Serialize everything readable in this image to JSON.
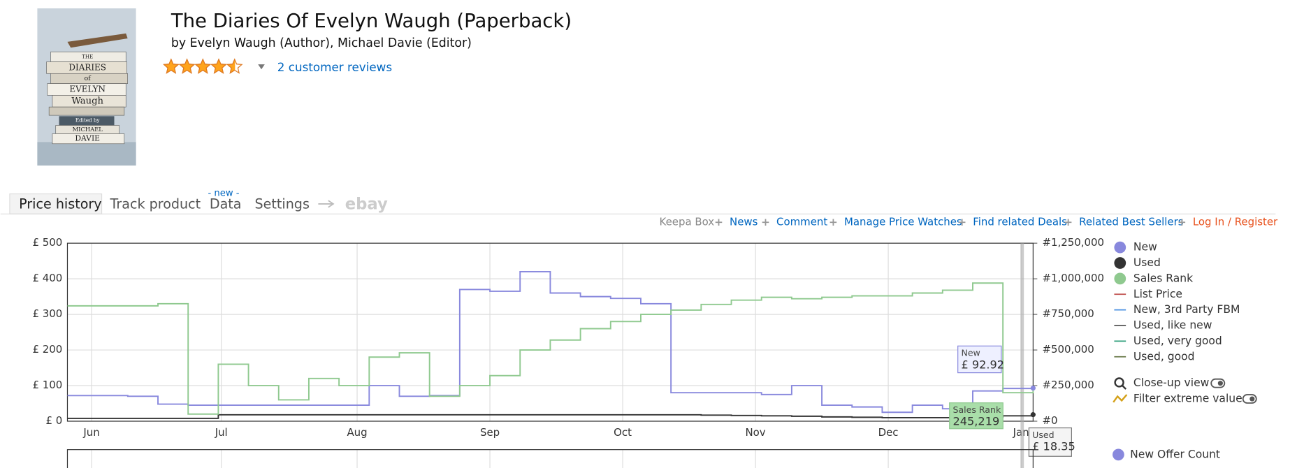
{
  "cover": {
    "lines": [
      "THE",
      "DIARIES",
      "of",
      "EVELYN",
      "Waugh",
      "Edited by",
      "MICHAEL",
      "DAVIE"
    ]
  },
  "header": {
    "title": "The Diaries Of Evelyn Waugh (Paperback)",
    "byline": "by Evelyn Waugh (Author), Michael Davie (Editor)",
    "rating": 4.5,
    "reviews": "2 customer reviews"
  },
  "tabs": {
    "items": [
      "Price history",
      "Track product",
      "Data",
      "Settings",
      "ebay"
    ],
    "new_badge": "- new -"
  },
  "links": [
    "Keepa Box",
    "News",
    "Comment",
    "Manage Price Watches",
    "Find related Deals",
    "Related Best Sellers",
    "Log In / Register"
  ],
  "chart_data": {
    "type": "line",
    "xlim": [
      0,
      32
    ],
    "xticks": [
      {
        "value": 0.8,
        "label": "Jun"
      },
      {
        "value": 5.1,
        "label": "Jul"
      },
      {
        "value": 9.6,
        "label": "Aug"
      },
      {
        "value": 14.0,
        "label": "Sep"
      },
      {
        "value": 18.4,
        "label": "Oct"
      },
      {
        "value": 22.8,
        "label": "Nov"
      },
      {
        "value": 27.2,
        "label": "Dec"
      },
      {
        "value": 31.6,
        "label": "Jan"
      }
    ],
    "ylim": [
      0,
      500
    ],
    "yticks": [
      {
        "value": 0,
        "label": "£ 0"
      },
      {
        "value": 100,
        "label": "£ 100"
      },
      {
        "value": 200,
        "label": "£ 200"
      },
      {
        "value": 300,
        "label": "£ 300"
      },
      {
        "value": 400,
        "label": "£ 400"
      },
      {
        "value": 500,
        "label": "£ 500"
      }
    ],
    "y2lim": [
      0,
      1250000
    ],
    "y2ticks": [
      {
        "value": 0,
        "label": "#0"
      },
      {
        "value": 250000,
        "label": "#250,000"
      },
      {
        "value": 500000,
        "label": "#500,000"
      },
      {
        "value": 750000,
        "label": "#750,000"
      },
      {
        "value": 1000000,
        "label": "#1,000,000"
      },
      {
        "value": 1250000,
        "label": "#1,250,000"
      }
    ],
    "grid": true,
    "series": [
      {
        "name": "New",
        "color": "#8888dd",
        "values": [
          72,
          72,
          70,
          48,
          45,
          45,
          45,
          45,
          45,
          45,
          100,
          70,
          72,
          370,
          365,
          420,
          360,
          350,
          345,
          330,
          80,
          80,
          80,
          75,
          100,
          45,
          40,
          25,
          45,
          35,
          85,
          92,
          92.92
        ]
      },
      {
        "name": "Used",
        "color": "#333333",
        "values": [
          8,
          8,
          8,
          8,
          8,
          18,
          18,
          18,
          18,
          18,
          18,
          18,
          18,
          18,
          18,
          18,
          18,
          18,
          18,
          18,
          18,
          17,
          16,
          15,
          14,
          12,
          11,
          10,
          10,
          10,
          12,
          15,
          18.35
        ]
      },
      {
        "name": "Sales Rank",
        "color": "#8fc98f",
        "axis": "y2",
        "values": [
          810000,
          810000,
          810000,
          825000,
          50000,
          400000,
          250000,
          150000,
          300000,
          250000,
          450000,
          480000,
          175000,
          250000,
          320000,
          500000,
          570000,
          650000,
          700000,
          750000,
          780000,
          820000,
          850000,
          870000,
          860000,
          870000,
          880000,
          880000,
          900000,
          920000,
          970000,
          200000,
          245219
        ]
      }
    ],
    "legend_extra": [
      {
        "name": "List Price",
        "color": "#c0504d"
      },
      {
        "name": "New, 3rd Party FBM",
        "color": "#4a90e2"
      },
      {
        "name": "Used, like new",
        "color": "#555555"
      },
      {
        "name": "Used, very good",
        "color": "#2e9e7a"
      },
      {
        "name": "Used, good",
        "color": "#6b7b4a"
      }
    ],
    "options": [
      "Close-up view",
      "Filter extreme values"
    ],
    "tooltips": [
      {
        "title": "New",
        "text": "£ 92.92"
      },
      {
        "title": "Sales Rank",
        "text": "245,219"
      },
      {
        "title": "Used",
        "text": "£ 18.35"
      }
    ],
    "secondary_legend": "New Offer Count"
  }
}
